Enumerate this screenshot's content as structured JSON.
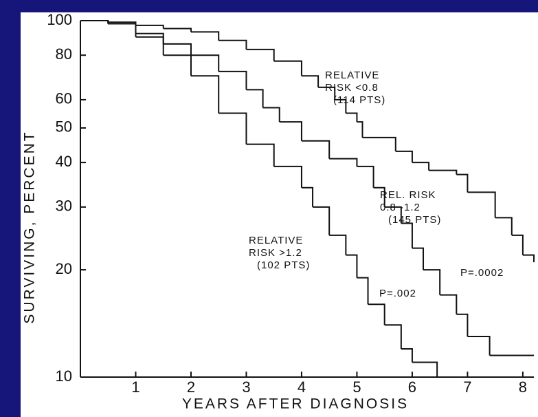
{
  "chart_data": {
    "type": "step",
    "y_label": "SURVIVING, PERCENT",
    "x_label": "YEARS AFTER DIAGNOSIS",
    "log_y": true,
    "xlim": [
      0,
      8.2
    ],
    "ylim": [
      10,
      100
    ],
    "xticks": [
      1,
      2,
      3,
      4,
      5,
      6,
      7,
      8
    ],
    "yticks": [
      10,
      20,
      30,
      40,
      50,
      60,
      80,
      100
    ],
    "color": "#111111",
    "series": [
      {
        "label_lines": [
          "RELATIVE",
          "RISK <0.8",
          "(114 PTS)"
        ],
        "x": [
          0,
          0.5,
          1,
          1.5,
          2,
          2.5,
          3,
          3.5,
          4,
          4.3,
          4.6,
          4.8,
          5,
          5.1,
          5.7,
          6,
          6.3,
          6.8,
          7,
          7.5,
          7.8,
          8,
          8.2
        ],
        "values": [
          100,
          99,
          97,
          95,
          93,
          88,
          83,
          77,
          70,
          65,
          60,
          55,
          52,
          47,
          43,
          40,
          38,
          37,
          33,
          28,
          25,
          22,
          21
        ]
      },
      {
        "label_lines": [
          "REL. RISK",
          "0.8 -1.2",
          "(145 PTS)"
        ],
        "x": [
          0,
          0.5,
          1,
          1.5,
          2,
          2.5,
          3,
          3.3,
          3.6,
          4,
          4.5,
          5,
          5.3,
          5.5,
          5.8,
          6,
          6.2,
          6.5,
          6.8,
          7,
          7.4,
          8.2
        ],
        "values": [
          100,
          98,
          92,
          86,
          80,
          72,
          64,
          57,
          52,
          46,
          41,
          39,
          34,
          30,
          27,
          23,
          20,
          17,
          15,
          13,
          11.5,
          11.5
        ]
      },
      {
        "label_lines": [
          "RELATIVE",
          "RISK >1.2",
          "(102 PTS)"
        ],
        "x": [
          0,
          0.5,
          1,
          1.5,
          2,
          2.5,
          3,
          3.5,
          4,
          4.2,
          4.5,
          4.8,
          5,
          5.2,
          5.5,
          5.8,
          6,
          6.45
        ],
        "values": [
          100,
          98,
          90,
          80,
          70,
          55,
          45,
          39,
          34,
          30,
          25,
          22,
          19,
          16,
          14,
          12,
          11,
          10
        ]
      }
    ],
    "p_values": [
      "P=.002",
      "P=.0002"
    ]
  }
}
